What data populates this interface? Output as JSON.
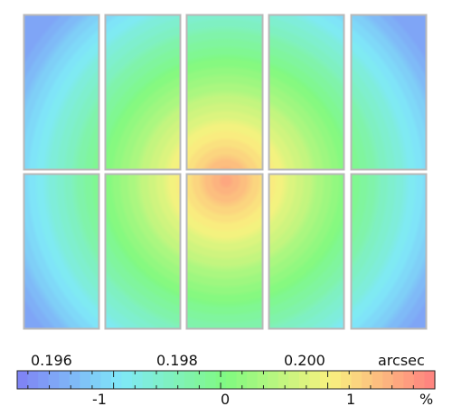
{
  "chart_data": {
    "type": "heatmap",
    "description_of_values": "relative plate-scale variation across a 5x2 mosaic of CCD chips",
    "grid": {
      "columns": 5,
      "rows": 2
    },
    "field": {
      "center_value_percent": 1.7,
      "corner_value_percent": -1.6
    },
    "colorbar": {
      "top_ticks": [
        "0.196",
        "0.198",
        "0.200"
      ],
      "top_tick_values": [
        0.196,
        0.198,
        0.2
      ],
      "top_unit": "arcsec",
      "bottom_ticks": [
        "-1",
        "0",
        "1"
      ],
      "bottom_tick_values": [
        -1,
        0,
        1
      ],
      "bottom_unit": "%",
      "range_percent": [
        -1.9,
        2.0
      ],
      "colors": [
        "#7f80f5",
        "#7fe9f8",
        "#80f980",
        "#f9f27f",
        "#ff7f7f"
      ],
      "levels": 40
    }
  }
}
